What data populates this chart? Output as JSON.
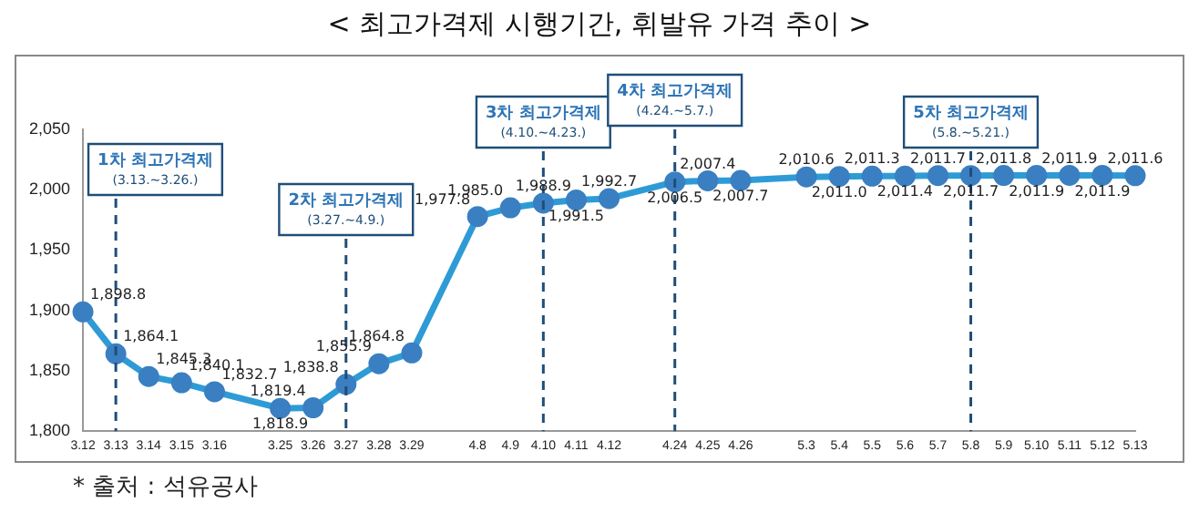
{
  "chart_data": {
    "type": "line",
    "title": "< 최고가격제 시행기간, 휘발유 가격 추이 >",
    "categories": [
      "3.12",
      "3.13",
      "3.14",
      "3.15",
      "3.16",
      null,
      "3.25",
      "3.26",
      "3.27",
      "3.28",
      "3.29",
      null,
      "4.8",
      "4.9",
      "4.10",
      "4.11",
      "4.12",
      null,
      "4.24",
      "4.25",
      "4.26",
      null,
      "5.3",
      "5.4",
      "5.5",
      "5.6",
      "5.7",
      "5.8",
      "5.9",
      "5.10",
      "5.11",
      "5.12",
      "5.13"
    ],
    "series": [
      {
        "color": "#2e9bd6",
        "values": [
          1898.8,
          1864.1,
          1845.3,
          1840.1,
          1832.7,
          null,
          1818.9,
          1819.4,
          1838.8,
          1855.9,
          1864.8,
          null,
          1977.8,
          1985.0,
          1988.9,
          1991.5,
          1992.7,
          null,
          2006.5,
          2007.4,
          2007.7,
          null,
          2010.6,
          2011.0,
          2011.3,
          2011.4,
          2011.7,
          2011.7,
          2011.8,
          2011.9,
          2011.9,
          2011.9,
          2011.6
        ],
        "value_labels": [
          "1,898.8",
          "1,864.1",
          "1,845.3",
          "1,840.1",
          "1,832.7",
          null,
          "1,818.9",
          "1,819.4",
          "1,838.8",
          "1,855.9",
          "1,864.8",
          null,
          "1,977.8",
          "1,985.0",
          "1,988.9",
          "1,991.5",
          "1,992.7",
          null,
          "2,006.5",
          "2,007.4",
          "2,007.7",
          null,
          "2,010.6",
          "2,011.0",
          "2,011.3",
          "2,011.4",
          "2,011.7",
          "2,011.7",
          "2,011.8",
          "2,011.9",
          "2,011.9",
          "2,011.9",
          "2,011.6"
        ]
      }
    ],
    "ylim": [
      1800,
      2050
    ],
    "yticks": [
      {
        "value": 1800,
        "label": "1,800"
      },
      {
        "value": 1850,
        "label": "1,850"
      },
      {
        "value": 1900,
        "label": "1,900"
      },
      {
        "value": 1950,
        "label": "1,950"
      },
      {
        "value": 2000,
        "label": "2,000"
      },
      {
        "value": 2050,
        "label": "2,050"
      }
    ],
    "ref_lines": [
      {
        "axis": "x",
        "value": "3.13",
        "label": "1차 최고가격제\n(3.13.~3.26.)",
        "color": "#1f4e79",
        "line_style": "dashed"
      },
      {
        "axis": "x",
        "value": "3.27",
        "label": "2차 최고가격제\n(3.27.~4.9.)",
        "color": "#1f4e79",
        "line_style": "dashed"
      },
      {
        "axis": "x",
        "value": "4.10",
        "label": "3차 최고가격제\n(4.10.~4.23.)",
        "color": "#1f4e79",
        "line_style": "dashed"
      },
      {
        "axis": "x",
        "value": "4.24",
        "label": "4차 최고가격제\n(4.24.~5.7.)",
        "color": "#1f4e79",
        "line_style": "dashed"
      },
      {
        "axis": "x",
        "value": "5.8",
        "label": "5차 최고가격제\n(5.8.~5.21.)",
        "color": "#1f4e79",
        "line_style": "dashed"
      }
    ],
    "annotations": [
      "* 출처 : 석유공사"
    ],
    "grid": false,
    "legend": false,
    "marker": "circle",
    "line_style": "solid"
  }
}
